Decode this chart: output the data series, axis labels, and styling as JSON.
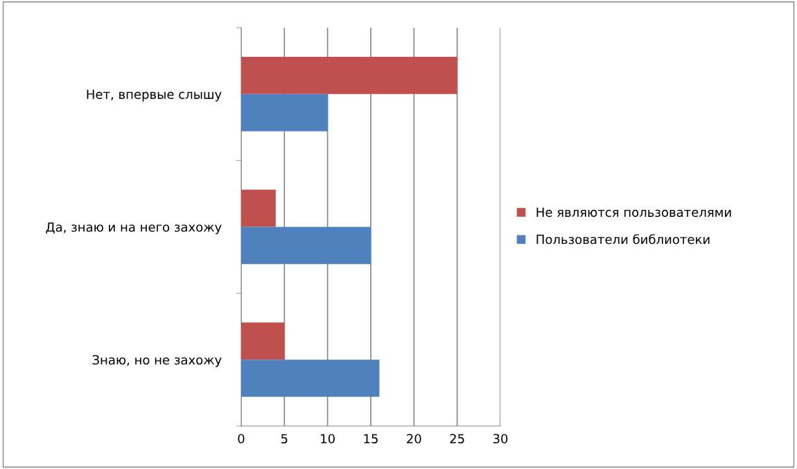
{
  "chart_data": {
    "type": "bar",
    "orientation": "horizontal",
    "categories": [
      "Нет, впервые слышу",
      "Да, знаю и на него захожу",
      "Знаю, но не захожу"
    ],
    "series": [
      {
        "name": "Не являются пользователями",
        "color": "#c0504d",
        "values": [
          25,
          4,
          5
        ]
      },
      {
        "name": "Пользователи библиотеки",
        "color": "#4f81bd",
        "values": [
          10,
          15,
          16
        ]
      }
    ],
    "xlim": [
      0,
      30
    ],
    "xticks": [
      0,
      5,
      10,
      15,
      20,
      25,
      30
    ],
    "grid": "x",
    "legend": "right"
  }
}
